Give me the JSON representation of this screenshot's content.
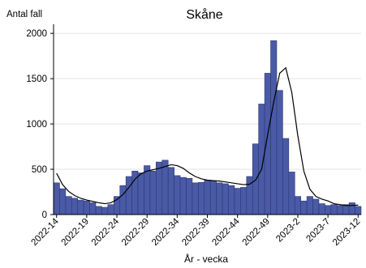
{
  "chart_data": {
    "type": "bar",
    "title": "Skåne",
    "ylabel": "Antal fall",
    "xlabel": "År - vecka",
    "ylim": [
      0,
      2100
    ],
    "yticks": [
      0,
      500,
      1000,
      1500,
      2000
    ],
    "xtick_labels": [
      "2022-14",
      "2022-19",
      "2022-24",
      "2022-29",
      "2022-34",
      "2022-39",
      "2022-44",
      "2022-49",
      "2023-2",
      "2023-7",
      "2023-12"
    ],
    "grid": true,
    "legend": "none",
    "bar_color": "#4a5aa6",
    "line_color": "#000000",
    "series": [
      {
        "type": "bar",
        "values": [
          350,
          285,
          200,
          180,
          160,
          150,
          130,
          90,
          80,
          110,
          200,
          320,
          420,
          480,
          460,
          540,
          480,
          580,
          600,
          520,
          430,
          410,
          400,
          350,
          355,
          380,
          370,
          350,
          340,
          320,
          290,
          300,
          420,
          780,
          1220,
          1560,
          1920,
          1370,
          840,
          470,
          200,
          150,
          200,
          170,
          120,
          100,
          110,
          100,
          110,
          130,
          90
        ]
      },
      {
        "type": "line",
        "values": [
          455,
          330,
          255,
          210,
          180,
          160,
          145,
          130,
          120,
          130,
          165,
          220,
          300,
          390,
          450,
          480,
          495,
          510,
          530,
          550,
          540,
          510,
          460,
          420,
          395,
          380,
          375,
          370,
          360,
          350,
          340,
          330,
          335,
          380,
          500,
          880,
          1240,
          1560,
          1620,
          1350,
          870,
          480,
          280,
          200,
          170,
          150,
          120,
          110,
          100,
          100,
          105
        ]
      }
    ]
  }
}
